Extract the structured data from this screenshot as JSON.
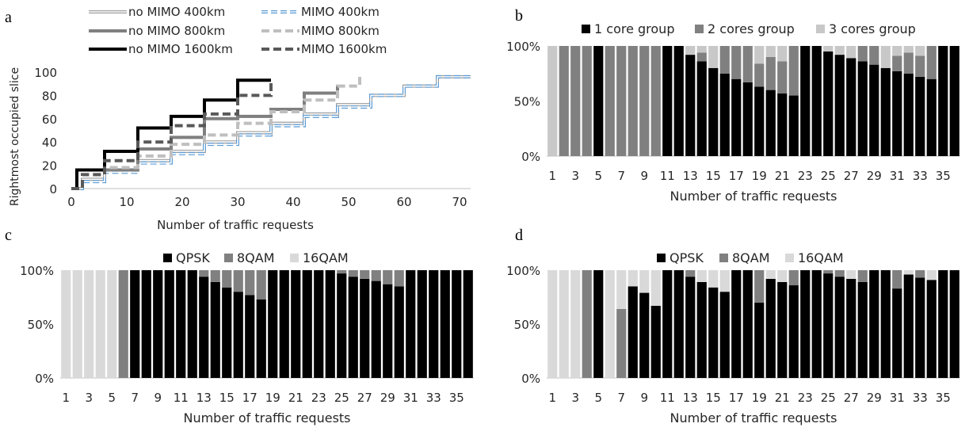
{
  "panel_labels": {
    "a": "a",
    "b": "b",
    "c": "c",
    "d": "d"
  },
  "chart_data": [
    {
      "id": "a",
      "type": "line",
      "xlabel": "Number of traffic requests",
      "ylabel": "Rightmost occupied slice",
      "xlim": [
        0,
        72
      ],
      "ylim": [
        0,
        100
      ],
      "xticks": [
        0,
        10,
        20,
        30,
        40,
        50,
        60,
        70
      ],
      "yticks": [
        0,
        20,
        40,
        60,
        80,
        100
      ],
      "legend_position": "top",
      "series": [
        {
          "name": "no MIMO 400km",
          "color": "#9e9e9e",
          "style": "double",
          "x": [
            0,
            2,
            6,
            12,
            18,
            24,
            30,
            36,
            42,
            48,
            54,
            60,
            66,
            72
          ],
          "y": [
            0,
            8,
            16,
            24,
            32,
            40,
            48,
            56,
            64,
            72,
            80,
            88,
            96,
            96
          ]
        },
        {
          "name": "MIMO 400km",
          "color": "#5b9bd5",
          "style": "double-dash",
          "x": [
            0,
            2,
            6,
            12,
            18,
            24,
            30,
            36,
            42,
            48,
            54,
            60,
            66,
            72
          ],
          "y": [
            0,
            6,
            14,
            22,
            30,
            38,
            46,
            54,
            62,
            70,
            80,
            88,
            96,
            96
          ]
        },
        {
          "name": "no MIMO 800km",
          "color": "#7f7f7f",
          "style": "solid",
          "x": [
            0,
            1,
            6,
            12,
            18,
            24,
            30,
            36,
            42,
            48
          ],
          "y": [
            0,
            16,
            16,
            34,
            44,
            60,
            62,
            68,
            82,
            88
          ]
        },
        {
          "name": "MIMO 800km",
          "color": "#bfbfbf",
          "style": "dash",
          "x": [
            0,
            2,
            6,
            12,
            18,
            24,
            30,
            36,
            42,
            48,
            52
          ],
          "y": [
            0,
            12,
            18,
            28,
            38,
            46,
            56,
            66,
            76,
            88,
            98
          ]
        },
        {
          "name": "no MIMO 1600km",
          "color": "#000000",
          "style": "solid",
          "x": [
            0,
            1,
            6,
            12,
            18,
            24,
            30,
            36
          ],
          "y": [
            0,
            16,
            32,
            52,
            62,
            76,
            93,
            93
          ]
        },
        {
          "name": "MIMO 1600km",
          "color": "#595959",
          "style": "dash",
          "x": [
            0,
            2,
            6,
            12,
            18,
            24,
            30,
            36
          ],
          "y": [
            0,
            12,
            24,
            40,
            54,
            64,
            80,
            93
          ]
        }
      ]
    },
    {
      "id": "b",
      "type": "bar",
      "stacked": true,
      "xlabel": "Number of traffic requests",
      "yticks": [
        "0%",
        "50%",
        "100%"
      ],
      "xticks": [
        "1",
        "3",
        "5",
        "7",
        "9",
        "11",
        "13",
        "15",
        "17",
        "19",
        "21",
        "23",
        "25",
        "27",
        "29",
        "31",
        "33",
        "35"
      ],
      "categories": [
        "1",
        "2",
        "3",
        "4",
        "5",
        "6",
        "7",
        "8",
        "9",
        "10",
        "11",
        "12",
        "13",
        "14",
        "15",
        "16",
        "17",
        "18",
        "19",
        "20",
        "21",
        "22",
        "23",
        "24",
        "25",
        "26",
        "27",
        "28",
        "29",
        "30",
        "31",
        "32",
        "33",
        "34",
        "35",
        "36"
      ],
      "series": [
        {
          "name": "1 core group",
          "color": "#000000",
          "values": [
            0,
            0,
            0,
            0,
            100,
            0,
            0,
            0,
            0,
            0,
            100,
            100,
            92,
            86,
            80,
            75,
            70,
            67,
            63,
            60,
            57,
            55,
            100,
            100,
            95,
            92,
            89,
            86,
            83,
            80,
            77,
            75,
            72,
            70,
            100,
            100
          ]
        },
        {
          "name": "2 cores group",
          "color": "#808080",
          "values": [
            0,
            100,
            100,
            100,
            0,
            100,
            100,
            100,
            100,
            100,
            0,
            0,
            0,
            8,
            0,
            25,
            30,
            33,
            21,
            30,
            29,
            45,
            0,
            0,
            0,
            0,
            0,
            14,
            17,
            0,
            14,
            19,
            19,
            30,
            0,
            0
          ]
        },
        {
          "name": "3 cores group",
          "color": "#c8c8c8",
          "values": [
            100,
            0,
            0,
            0,
            0,
            0,
            0,
            0,
            0,
            0,
            0,
            0,
            8,
            6,
            20,
            0,
            0,
            0,
            16,
            10,
            14,
            0,
            0,
            0,
            5,
            8,
            11,
            0,
            0,
            20,
            9,
            6,
            9,
            0,
            0,
            0
          ]
        }
      ]
    },
    {
      "id": "c",
      "type": "bar",
      "stacked": true,
      "xlabel": "Number of traffic requests",
      "yticks": [
        "0%",
        "50%",
        "100%"
      ],
      "xticks": [
        "1",
        "3",
        "5",
        "7",
        "9",
        "11",
        "13",
        "15",
        "17",
        "19",
        "21",
        "23",
        "25",
        "27",
        "29",
        "31",
        "33",
        "35"
      ],
      "categories": [
        "1",
        "2",
        "3",
        "4",
        "5",
        "6",
        "7",
        "8",
        "9",
        "10",
        "11",
        "12",
        "13",
        "14",
        "15",
        "16",
        "17",
        "18",
        "19",
        "20",
        "21",
        "22",
        "23",
        "24",
        "25",
        "26",
        "27",
        "28",
        "29",
        "30",
        "31",
        "32",
        "33",
        "34",
        "35",
        "36"
      ],
      "series": [
        {
          "name": "QPSK",
          "color": "#000000",
          "values": [
            0,
            0,
            0,
            0,
            0,
            0,
            100,
            100,
            100,
            100,
            100,
            100,
            94,
            89,
            84,
            80,
            77,
            73,
            100,
            100,
            100,
            100,
            100,
            100,
            97,
            94,
            92,
            90,
            87,
            85,
            100,
            100,
            100,
            100,
            100,
            100
          ]
        },
        {
          "name": "8QAM",
          "color": "#808080",
          "values": [
            0,
            0,
            0,
            0,
            0,
            100,
            0,
            0,
            0,
            0,
            0,
            0,
            6,
            11,
            16,
            20,
            23,
            27,
            0,
            0,
            0,
            0,
            0,
            0,
            3,
            6,
            8,
            10,
            13,
            15,
            0,
            0,
            0,
            0,
            0,
            0
          ]
        },
        {
          "name": "16QAM",
          "color": "#d9d9d9",
          "values": [
            100,
            100,
            100,
            100,
            100,
            0,
            0,
            0,
            0,
            0,
            0,
            0,
            0,
            0,
            0,
            0,
            0,
            0,
            0,
            0,
            0,
            0,
            0,
            0,
            0,
            0,
            0,
            0,
            0,
            0,
            0,
            0,
            0,
            0,
            0,
            0
          ]
        }
      ]
    },
    {
      "id": "d",
      "type": "bar",
      "stacked": true,
      "xlabel": "Number of traffic requests",
      "yticks": [
        "0%",
        "50%",
        "100%"
      ],
      "xticks": [
        "1",
        "3",
        "5",
        "7",
        "9",
        "11",
        "13",
        "15",
        "17",
        "19",
        "21",
        "23",
        "25",
        "27",
        "29",
        "31",
        "33",
        "35"
      ],
      "categories": [
        "1",
        "2",
        "3",
        "4",
        "5",
        "6",
        "7",
        "8",
        "9",
        "10",
        "11",
        "12",
        "13",
        "14",
        "15",
        "16",
        "17",
        "18",
        "19",
        "20",
        "21",
        "22",
        "23",
        "24",
        "25",
        "26",
        "27",
        "28",
        "29",
        "30",
        "31",
        "32",
        "33",
        "34",
        "35",
        "36"
      ],
      "series": [
        {
          "name": "QPSK",
          "color": "#000000",
          "values": [
            0,
            0,
            0,
            0,
            100,
            0,
            0,
            85,
            79,
            67,
            100,
            100,
            94,
            89,
            84,
            80,
            100,
            100,
            70,
            92,
            89,
            86,
            100,
            100,
            97,
            94,
            92,
            89,
            100,
            100,
            83,
            96,
            93,
            91,
            100,
            100
          ]
        },
        {
          "name": "8QAM",
          "color": "#808080",
          "values": [
            0,
            0,
            0,
            100,
            0,
            0,
            64,
            0,
            0,
            0,
            0,
            0,
            6,
            0,
            0,
            0,
            0,
            0,
            30,
            0,
            0,
            14,
            0,
            0,
            3,
            6,
            0,
            11,
            0,
            0,
            17,
            0,
            7,
            0,
            0,
            0
          ]
        },
        {
          "name": "16QAM",
          "color": "#d9d9d9",
          "values": [
            100,
            100,
            100,
            0,
            0,
            100,
            36,
            15,
            21,
            33,
            0,
            0,
            0,
            11,
            16,
            20,
            0,
            0,
            0,
            8,
            11,
            0,
            0,
            0,
            0,
            0,
            8,
            0,
            0,
            0,
            0,
            4,
            0,
            9,
            0,
            0
          ]
        }
      ]
    }
  ]
}
